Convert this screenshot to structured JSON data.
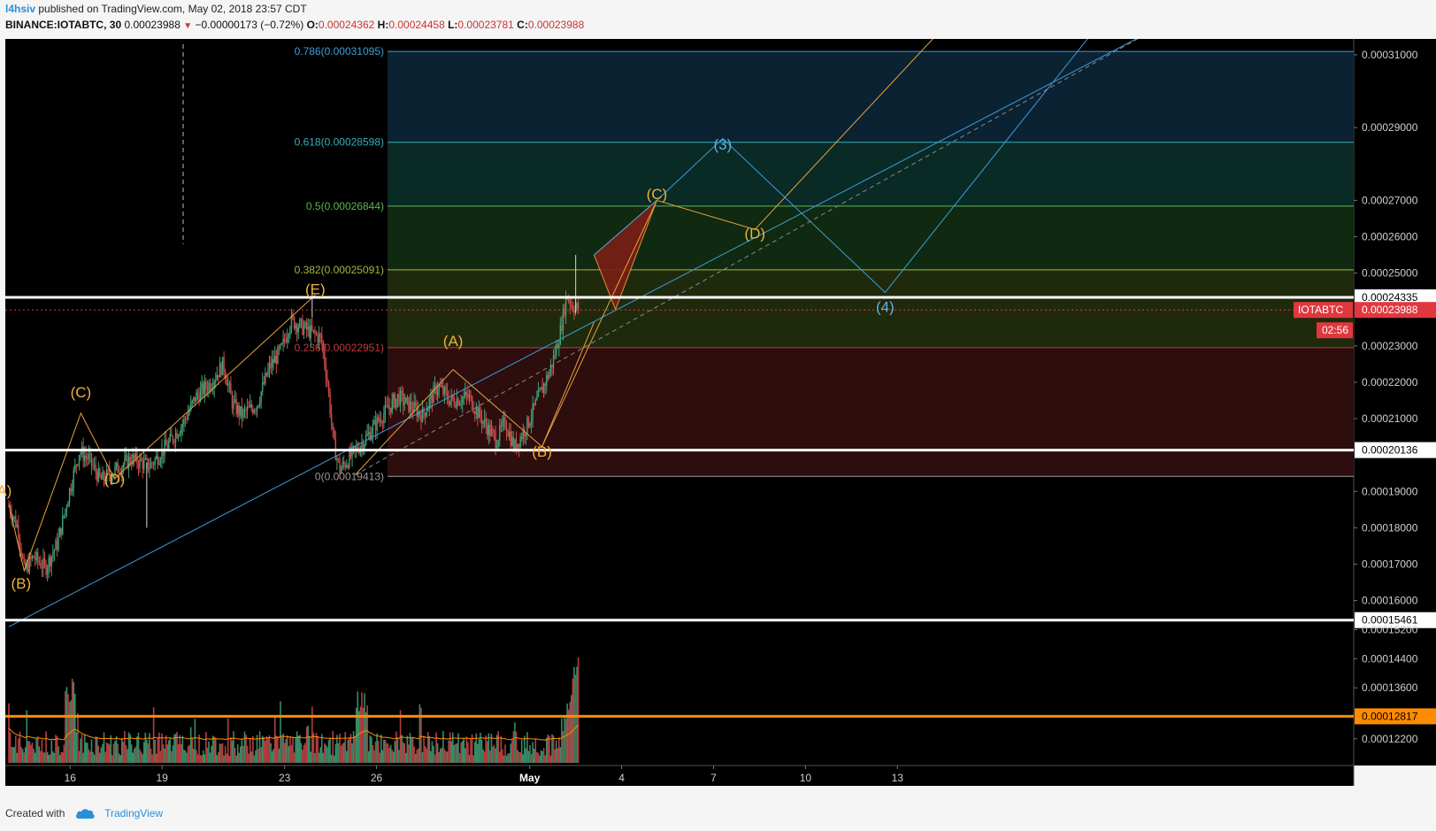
{
  "header": {
    "author": "l4hsiv",
    "published": " published on TradingView.com, May 02, 2018 23:57 CDT",
    "symbol": "BINANCE:IOTABTC, 30",
    "last": "0.00023988",
    "change": "−0.00000173 (−0.72%)",
    "open_label": "O:",
    "open": "0.00024362",
    "high_label": "H:",
    "high": "0.00024458",
    "low_label": "L:",
    "low": "0.00023781",
    "close_label": "C:",
    "close": "0.00023988"
  },
  "footer": {
    "created_with": "Created with",
    "brand": "TradingView"
  },
  "colors": {
    "background": "#000000",
    "fib_blue": "#3f9cd6",
    "fib_cyan": "#35b0b8",
    "fib_green": "#59b94d",
    "fib_olive": "#a5b63f",
    "fib_red": "#c23a3a",
    "wave_orange": "#e9a23b",
    "wave_blue": "#3f9cd6",
    "candle_up": "#3fa37a",
    "candle_down": "#d04a4a",
    "price_tag": "#e0383e",
    "volume_line": "#ff8c00"
  },
  "chart_data": {
    "type": "candlestick",
    "symbol": "IOTABTC",
    "interval": "30",
    "price_axis": {
      "range": [
        0.0001176,
        0.0003175
      ],
      "ticks": [
        "0.00031000",
        "0.00029000",
        "0.00027000",
        "0.00026000",
        "0.00025000",
        "0.00023000",
        "0.00022000",
        "0.00021000",
        "0.00019000",
        "0.00018000",
        "0.00017000",
        "0.00016000",
        "0.00015200",
        "0.00014400",
        "0.00013600",
        "0.00012200"
      ],
      "tick_values": [
        0.00031,
        0.00029,
        0.00027,
        0.00026,
        0.00025,
        0.00023,
        0.00022,
        0.00021,
        0.00019,
        0.00018,
        0.00017,
        0.00016,
        0.000152,
        0.000144,
        0.000136,
        0.000122
      ]
    },
    "time_axis": {
      "labels": [
        "16",
        "19",
        "23",
        "26",
        "May",
        "4",
        "7",
        "10",
        "13"
      ],
      "day_index": [
        2,
        5,
        9,
        12,
        17,
        20,
        23,
        26,
        29
      ]
    },
    "current_price": {
      "value": 0.00023988,
      "label": "0.00023988",
      "symbol_tag": "IOTABTC",
      "countdown": "02:56"
    },
    "horizontal_levels": [
      {
        "value": 0.00024335,
        "label": "0.00024335",
        "color": "#ffffff"
      },
      {
        "value": 0.00020136,
        "label": "0.00020136",
        "color": "#ffffff"
      },
      {
        "value": 0.00015461,
        "label": "0.00015461",
        "color": "#ffffff"
      },
      {
        "value": 0.00012817,
        "label": "0.00012817",
        "color": "#ff8c00"
      }
    ],
    "fib_retracement": [
      {
        "ratio": "0.786",
        "value": 0.00031095,
        "label": "0.786(0.00031095)"
      },
      {
        "ratio": "0.618",
        "value": 0.00028598,
        "label": "0.618(0.00028598)"
      },
      {
        "ratio": "0.5",
        "value": 0.00026844,
        "label": "0.5(0.00026844)"
      },
      {
        "ratio": "0.382",
        "value": 0.00025091,
        "label": "0.382(0.00025091)"
      },
      {
        "ratio": "0.236",
        "value": 0.00022951,
        "label": "0.236(0.00022951)"
      },
      {
        "ratio": "0",
        "value": 0.00019413,
        "label": "0(0.00019413)"
      }
    ],
    "price_path": [
      [
        0.0,
        0.000186
      ],
      [
        0.3,
        0.00018
      ],
      [
        0.5,
        0.000168
      ],
      [
        0.8,
        0.000172
      ],
      [
        1.2,
        0.000169
      ],
      [
        1.6,
        0.000176
      ],
      [
        2.0,
        0.000191
      ],
      [
        2.3,
        0.000201
      ],
      [
        2.6,
        0.000199
      ],
      [
        3.0,
        0.000193
      ],
      [
        3.5,
        0.000196
      ],
      [
        4.0,
        0.000199
      ],
      [
        4.6,
        0.000197
      ],
      [
        5.2,
        0.000203
      ],
      [
        5.7,
        0.000209
      ],
      [
        6.1,
        0.000216
      ],
      [
        6.6,
        0.00022
      ],
      [
        7.0,
        0.000225
      ],
      [
        7.3,
        0.000214
      ],
      [
        7.6,
        0.000211
      ],
      [
        8.1,
        0.000214
      ],
      [
        8.5,
        0.000224
      ],
      [
        8.9,
        0.000229
      ],
      [
        9.2,
        0.000237
      ],
      [
        9.6,
        0.000235
      ],
      [
        10.2,
        0.000232
      ],
      [
        10.4,
        0.00022
      ],
      [
        10.6,
        0.000203
      ],
      [
        10.8,
        0.000196
      ],
      [
        11.1,
        0.000199
      ],
      [
        11.6,
        0.000204
      ],
      [
        12.1,
        0.00021
      ],
      [
        12.7,
        0.000216
      ],
      [
        13.0,
        0.000214
      ],
      [
        13.5,
        0.000211
      ],
      [
        14.0,
        0.000219
      ],
      [
        14.4,
        0.000215
      ],
      [
        15.0,
        0.000216
      ],
      [
        15.5,
        0.000209
      ],
      [
        15.9,
        0.000204
      ],
      [
        16.2,
        0.000209
      ],
      [
        16.5,
        0.000202
      ],
      [
        16.9,
        0.000208
      ],
      [
        17.3,
        0.000216
      ],
      [
        17.7,
        0.000224
      ],
      [
        18.0,
        0.000234
      ],
      [
        18.2,
        0.000244
      ],
      [
        18.4,
        0.000241
      ],
      [
        18.6,
        0.00024
      ]
    ],
    "wave_labels_orange": [
      {
        "text": "A)",
        "x": -0.15,
        "y": 0.0001889
      },
      {
        "text": "(B)",
        "x": 0.4,
        "y": 0.0001633
      },
      {
        "text": "(C)",
        "x": 2.35,
        "y": 0.0002158
      },
      {
        "text": "(D)",
        "x": 3.45,
        "y": 0.000192
      },
      {
        "text": "(E)",
        "x": 10.0,
        "y": 0.0002442
      },
      {
        "text": "(A)",
        "x": 14.5,
        "y": 0.00023
      },
      {
        "text": "(B)",
        "x": 17.4,
        "y": 0.0001995
      },
      {
        "text": "(C)",
        "x": 21.15,
        "y": 0.0002704
      },
      {
        "text": "(D)",
        "x": 24.35,
        "y": 0.0002595
      }
    ],
    "wave_labels_blue": [
      {
        "text": "(3)",
        "x": 23.3,
        "y": 0.000284
      },
      {
        "text": "(4)",
        "x": 28.6,
        "y": 0.0002393
      }
    ],
    "wave_lines_orange": [
      [
        [
          0.0,
          0.0001865
        ],
        [
          0.5,
          0.0001682
        ],
        [
          2.35,
          0.0002115
        ],
        [
          3.45,
          0.0001935
        ],
        [
          10.0,
          0.000244
        ]
      ],
      [
        [
          11.3,
          0.0001945
        ],
        [
          14.5,
          0.0002235
        ],
        [
          17.4,
          0.0002023
        ],
        [
          21.15,
          0.00027
        ],
        [
          24.35,
          0.000262
        ],
        [
          30.5,
          0.0003175
        ]
      ],
      [
        [
          17.4,
          0.0002023
        ],
        [
          19.1,
          0.0002365
        ]
      ]
    ],
    "wave_lines_blue": [
      [
        [
          19.1,
          0.000255
        ],
        [
          21.15,
          0.00027
        ],
        [
          23.3,
          0.000287
        ],
        [
          28.6,
          0.0002447
        ],
        [
          35.5,
          0.0003175
        ]
      ]
    ],
    "trendlines": [
      {
        "from": [
          0.0,
          0.0001528
        ],
        "to": [
          37.5,
          0.0003175
        ],
        "color": "#3f9cd6",
        "style": "solid"
      },
      {
        "from": [
          11.3,
          0.0001945
        ],
        "to": [
          37.5,
          0.0003175
        ],
        "color": "#8a8a8a",
        "style": "dashed"
      }
    ],
    "triangle": [
      [
        19.1,
        0.000255
      ],
      [
        21.15,
        0.00027
      ],
      [
        19.8,
        0.00024
      ]
    ],
    "volume": {
      "spike_day": 18.7,
      "base_level": 0.00012817
    }
  }
}
